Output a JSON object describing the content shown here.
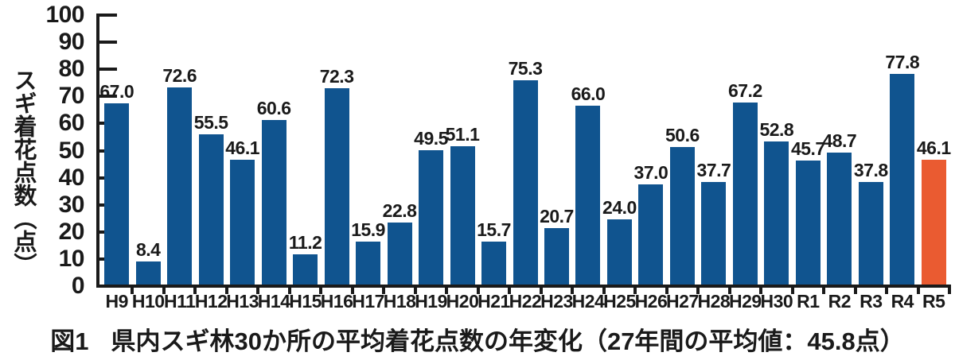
{
  "chart_data": {
    "type": "bar",
    "title": "",
    "xlabel": "",
    "ylabel": "スギ着花点数（点）",
    "ylim": [
      0,
      100
    ],
    "ytick_interval": 10,
    "yticks": [
      "0",
      "10",
      "20",
      "30",
      "40",
      "50",
      "60",
      "70",
      "80",
      "90",
      "100"
    ],
    "categories": [
      "H9",
      "H10",
      "H11",
      "H12",
      "H13",
      "H14",
      "H15",
      "H16",
      "H17",
      "H18",
      "H19",
      "H20",
      "H21",
      "H22",
      "H23",
      "H24",
      "H25",
      "H26",
      "H27",
      "H28",
      "H29",
      "H30",
      "R1",
      "R2",
      "R3",
      "R4",
      "R5"
    ],
    "values": [
      67.0,
      8.4,
      72.6,
      55.5,
      46.1,
      60.6,
      11.2,
      72.3,
      15.9,
      22.8,
      49.5,
      51.1,
      15.7,
      75.3,
      20.7,
      66.0,
      24.0,
      37.0,
      50.6,
      37.7,
      67.2,
      52.8,
      45.7,
      48.7,
      37.8,
      77.8,
      46.1
    ],
    "labels": [
      "67.0",
      "8.4",
      "72.6",
      "55.5",
      "46.1",
      "60.6",
      "11.2",
      "72.3",
      "15.9",
      "22.8",
      "49.5",
      "51.1",
      "15.7",
      "75.3",
      "20.7",
      "66.0",
      "24.0",
      "37.0",
      "50.6",
      "37.7",
      "67.2",
      "52.8",
      "45.7",
      "48.7",
      "37.8",
      "77.8",
      "46.1"
    ],
    "bar_color": "#10548F",
    "highlight_color": "#EA5B31",
    "highlight_index": 26,
    "grid": false,
    "legend": "none"
  },
  "caption": {
    "figure_label": "図1",
    "text": "県内スギ林30か所の平均着花点数の年変化（27年間の平均値：45.8点）"
  }
}
